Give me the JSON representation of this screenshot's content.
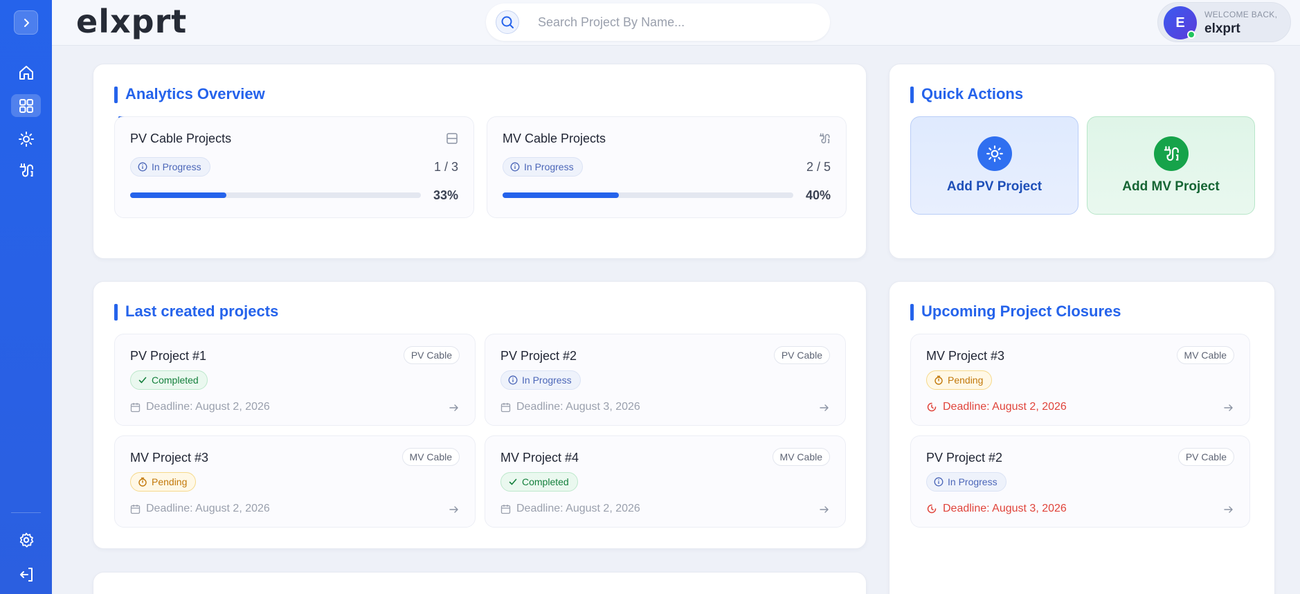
{
  "header": {
    "logo": "elxprt",
    "search_placeholder": "Search Project By Name...",
    "user": {
      "welcome": "WELCOME BACK,",
      "name": "elxprt",
      "initial": "E"
    }
  },
  "sidebar": {
    "items": [
      {
        "icon": "home-icon"
      },
      {
        "icon": "dashboard-grid-icon",
        "active": true
      },
      {
        "icon": "sun-icon"
      },
      {
        "icon": "cable-icon"
      }
    ],
    "bottom": [
      {
        "icon": "gear-icon"
      },
      {
        "icon": "logout-icon"
      }
    ]
  },
  "analytics": {
    "title": "Analytics Overview",
    "cards": [
      {
        "title": "PV Cable Projects",
        "status": "In Progress",
        "ratio": "1 / 3",
        "percent": "33%",
        "progress": 0.33
      },
      {
        "title": "MV Cable Projects",
        "status": "In Progress",
        "ratio": "2 / 5",
        "percent": "40%",
        "progress": 0.4
      }
    ]
  },
  "quick_actions": {
    "title": "Quick Actions",
    "add_pv": "Add PV Project",
    "add_mv": "Add MV Project"
  },
  "last_created": {
    "title": "Last created projects",
    "projects": [
      {
        "name": "PV Project #1",
        "tag": "PV Cable",
        "status": "Completed",
        "deadline": "Deadline: August 2, 2026"
      },
      {
        "name": "PV Project #2",
        "tag": "PV Cable",
        "status": "In Progress",
        "deadline": "Deadline: August 3, 2026"
      },
      {
        "name": "MV Project #3",
        "tag": "MV Cable",
        "status": "Pending",
        "deadline": "Deadline: August 2, 2026"
      },
      {
        "name": "MV Project #4",
        "tag": "MV Cable",
        "status": "Completed",
        "deadline": "Deadline: August 2, 2026"
      }
    ]
  },
  "upcoming": {
    "title": "Upcoming Project Closures",
    "projects": [
      {
        "name": "MV Project #3",
        "tag": "MV Cable",
        "status": "Pending",
        "deadline": "Deadline: August 2, 2026"
      },
      {
        "name": "PV Project #2",
        "tag": "PV Cable",
        "status": "In Progress",
        "deadline": "Deadline: August 3, 2026"
      }
    ]
  },
  "colors": {
    "accent": "#2563eb",
    "success": "#16a34a",
    "warning": "#d97706",
    "danger": "#e0443b"
  }
}
